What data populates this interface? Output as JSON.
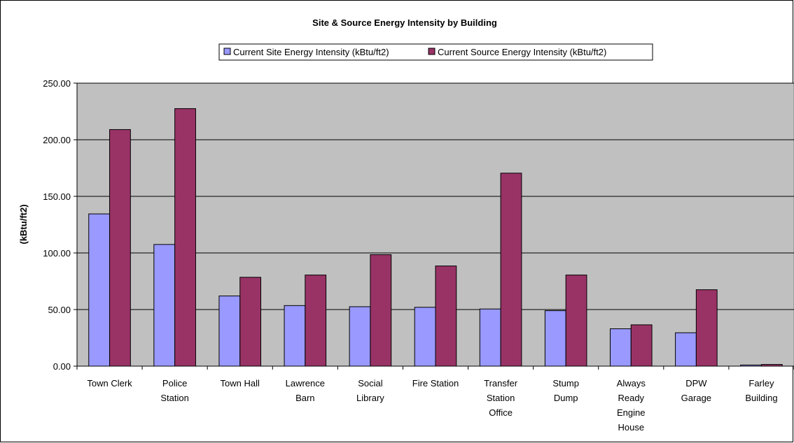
{
  "chart_data": {
    "type": "bar",
    "title": "Site & Source Energy Intensity by Building",
    "xlabel": "",
    "ylabel": "(kBtu/ft2)",
    "ylim": [
      0,
      250
    ],
    "yticks": [
      "0.00",
      "50.00",
      "100.00",
      "150.00",
      "200.00",
      "250.00"
    ],
    "grid": true,
    "legend_position": "top",
    "plot_background": "#c0c0c0",
    "categories": [
      [
        "Town Clerk"
      ],
      [
        "Police",
        "Station"
      ],
      [
        "Town Hall"
      ],
      [
        "Lawrence",
        "Barn"
      ],
      [
        "Social",
        "Library"
      ],
      [
        "Fire Station"
      ],
      [
        "Transfer",
        "Station",
        "Office"
      ],
      [
        "Stump",
        "Dump"
      ],
      [
        "Always",
        "Ready",
        "Engine",
        "House"
      ],
      [
        "DPW",
        "Garage"
      ],
      [
        "Farley",
        "Building"
      ]
    ],
    "series": [
      {
        "name": "Current Site Energy Intensity (kBtu/ft2)",
        "color": "#9999ff",
        "values": [
          134.5,
          107.5,
          62.0,
          53.5,
          52.5,
          52.0,
          50.5,
          49.0,
          33.0,
          29.5,
          1.0
        ]
      },
      {
        "name": "Current Source Energy Intensity (kBtu/ft2)",
        "color": "#993366",
        "values": [
          209.0,
          227.5,
          78.5,
          80.5,
          98.5,
          88.5,
          170.5,
          80.5,
          36.5,
          67.5,
          1.5
        ]
      }
    ]
  }
}
